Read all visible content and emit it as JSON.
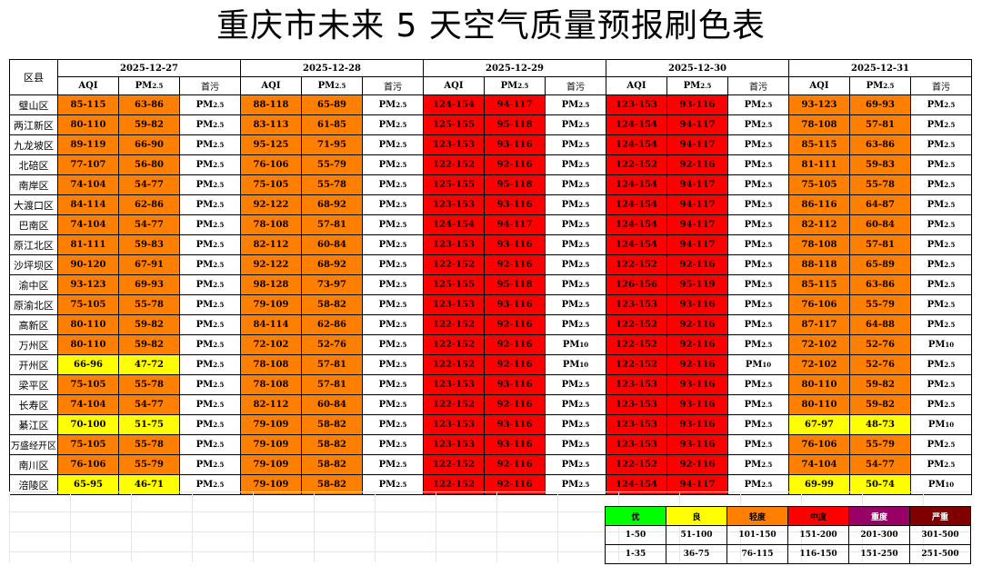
{
  "title": "重庆市未来 5 天空气质量预报刷色表",
  "header": {
    "district_label": "区县",
    "dates": [
      "2025-12-27",
      "2025-12-28",
      "2025-12-29",
      "2025-12-30",
      "2025-12-31"
    ],
    "sub_labels": [
      "AQI",
      "PM2.5",
      "首污"
    ]
  },
  "colors": {
    "good": "#ffff00",
    "light": "#ff7f00",
    "moderate": "#ff0000",
    "excellent": "#00ff00",
    "heavy": "#990066",
    "severe": "#800000"
  },
  "rows": [
    {
      "district": "璧山区",
      "days": [
        [
          "85-115",
          "63-86",
          "PM2.5",
          "light"
        ],
        [
          "88-118",
          "65-89",
          "PM2.5",
          "light"
        ],
        [
          "124-154",
          "94-117",
          "PM2.5",
          "mid"
        ],
        [
          "123-153",
          "93-116",
          "PM2.5",
          "mid"
        ],
        [
          "93-123",
          "69-93",
          "PM2.5",
          "light"
        ]
      ]
    },
    {
      "district": "两江新区",
      "days": [
        [
          "80-110",
          "59-82",
          "PM2.5",
          "light"
        ],
        [
          "83-113",
          "61-85",
          "PM2.5",
          "light"
        ],
        [
          "125-155",
          "95-118",
          "PM2.5",
          "mid"
        ],
        [
          "124-154",
          "94-117",
          "PM2.5",
          "mid"
        ],
        [
          "78-108",
          "57-81",
          "PM2.5",
          "light"
        ]
      ]
    },
    {
      "district": "九龙坡区",
      "days": [
        [
          "89-119",
          "66-90",
          "PM2.5",
          "light"
        ],
        [
          "95-125",
          "71-95",
          "PM2.5",
          "light"
        ],
        [
          "123-153",
          "93-116",
          "PM2.5",
          "mid"
        ],
        [
          "124-154",
          "94-117",
          "PM2.5",
          "mid"
        ],
        [
          "85-115",
          "63-86",
          "PM2.5",
          "light"
        ]
      ]
    },
    {
      "district": "北碚区",
      "days": [
        [
          "77-107",
          "56-80",
          "PM2.5",
          "light"
        ],
        [
          "76-106",
          "55-79",
          "PM2.5",
          "light"
        ],
        [
          "122-152",
          "92-116",
          "PM2.5",
          "mid"
        ],
        [
          "122-152",
          "92-116",
          "PM2.5",
          "mid"
        ],
        [
          "81-111",
          "59-83",
          "PM2.5",
          "light"
        ]
      ]
    },
    {
      "district": "南岸区",
      "days": [
        [
          "74-104",
          "54-77",
          "PM2.5",
          "light"
        ],
        [
          "75-105",
          "55-78",
          "PM2.5",
          "light"
        ],
        [
          "125-155",
          "95-118",
          "PM2.5",
          "mid"
        ],
        [
          "124-154",
          "94-117",
          "PM2.5",
          "mid"
        ],
        [
          "75-105",
          "55-78",
          "PM2.5",
          "light"
        ]
      ]
    },
    {
      "district": "大渡口区",
      "days": [
        [
          "84-114",
          "62-86",
          "PM2.5",
          "light"
        ],
        [
          "92-122",
          "68-92",
          "PM2.5",
          "light"
        ],
        [
          "123-153",
          "93-116",
          "PM2.5",
          "mid"
        ],
        [
          "124-154",
          "94-117",
          "PM2.5",
          "mid"
        ],
        [
          "86-116",
          "64-87",
          "PM2.5",
          "light"
        ]
      ]
    },
    {
      "district": "巴南区",
      "days": [
        [
          "74-104",
          "54-77",
          "PM2.5",
          "light"
        ],
        [
          "78-108",
          "57-81",
          "PM2.5",
          "light"
        ],
        [
          "124-154",
          "94-117",
          "PM2.5",
          "mid"
        ],
        [
          "124-154",
          "94-117",
          "PM2.5",
          "mid"
        ],
        [
          "82-112",
          "60-84",
          "PM2.5",
          "light"
        ]
      ]
    },
    {
      "district": "原江北区",
      "days": [
        [
          "81-111",
          "59-83",
          "PM2.5",
          "light"
        ],
        [
          "82-112",
          "60-84",
          "PM2.5",
          "light"
        ],
        [
          "123-153",
          "93-116",
          "PM2.5",
          "mid"
        ],
        [
          "124-154",
          "94-117",
          "PM2.5",
          "mid"
        ],
        [
          "78-108",
          "57-81",
          "PM2.5",
          "light"
        ]
      ]
    },
    {
      "district": "沙坪坝区",
      "days": [
        [
          "90-120",
          "67-91",
          "PM2.5",
          "light"
        ],
        [
          "92-122",
          "68-92",
          "PM2.5",
          "light"
        ],
        [
          "122-152",
          "92-116",
          "PM2.5",
          "mid"
        ],
        [
          "122-152",
          "92-116",
          "PM2.5",
          "mid"
        ],
        [
          "88-118",
          "65-89",
          "PM2.5",
          "light"
        ]
      ]
    },
    {
      "district": "渝中区",
      "days": [
        [
          "93-123",
          "69-93",
          "PM2.5",
          "light"
        ],
        [
          "98-128",
          "73-97",
          "PM2.5",
          "light"
        ],
        [
          "125-155",
          "95-118",
          "PM2.5",
          "mid"
        ],
        [
          "126-156",
          "95-119",
          "PM2.5",
          "mid"
        ],
        [
          "85-115",
          "63-86",
          "PM2.5",
          "light"
        ]
      ]
    },
    {
      "district": "原渝北区",
      "days": [
        [
          "75-105",
          "55-78",
          "PM2.5",
          "light"
        ],
        [
          "79-109",
          "58-82",
          "PM2.5",
          "light"
        ],
        [
          "123-153",
          "93-116",
          "PM2.5",
          "mid"
        ],
        [
          "123-153",
          "93-116",
          "PM2.5",
          "mid"
        ],
        [
          "76-106",
          "55-79",
          "PM2.5",
          "light"
        ]
      ]
    },
    {
      "district": "高新区",
      "days": [
        [
          "80-110",
          "59-82",
          "PM2.5",
          "light"
        ],
        [
          "84-114",
          "62-86",
          "PM2.5",
          "light"
        ],
        [
          "122-152",
          "92-116",
          "PM2.5",
          "mid"
        ],
        [
          "122-152",
          "92-116",
          "PM2.5",
          "mid"
        ],
        [
          "87-117",
          "64-88",
          "PM2.5",
          "light"
        ]
      ]
    },
    {
      "district": "万州区",
      "days": [
        [
          "80-110",
          "59-82",
          "PM2.5",
          "light"
        ],
        [
          "72-102",
          "52-76",
          "PM2.5",
          "light"
        ],
        [
          "122-152",
          "92-116",
          "PM10",
          "mid"
        ],
        [
          "122-152",
          "92-116",
          "PM2.5",
          "mid"
        ],
        [
          "72-102",
          "52-76",
          "PM10",
          "light"
        ]
      ]
    },
    {
      "district": "开州区",
      "days": [
        [
          "66-96",
          "47-72",
          "PM2.5",
          "good"
        ],
        [
          "78-108",
          "57-81",
          "PM2.5",
          "light"
        ],
        [
          "122-152",
          "92-116",
          "PM10",
          "mid"
        ],
        [
          "122-152",
          "92-116",
          "PM10",
          "mid"
        ],
        [
          "72-102",
          "52-76",
          "PM2.5",
          "light"
        ]
      ]
    },
    {
      "district": "梁平区",
      "days": [
        [
          "75-105",
          "55-78",
          "PM2.5",
          "light"
        ],
        [
          "78-108",
          "57-81",
          "PM2.5",
          "light"
        ],
        [
          "123-153",
          "93-116",
          "PM2.5",
          "mid"
        ],
        [
          "123-153",
          "93-116",
          "PM2.5",
          "mid"
        ],
        [
          "80-110",
          "59-82",
          "PM2.5",
          "light"
        ]
      ]
    },
    {
      "district": "长寿区",
      "days": [
        [
          "74-104",
          "54-77",
          "PM2.5",
          "light"
        ],
        [
          "82-112",
          "60-84",
          "PM2.5",
          "light"
        ],
        [
          "122-152",
          "92-116",
          "PM2.5",
          "mid"
        ],
        [
          "123-153",
          "93-116",
          "PM2.5",
          "mid"
        ],
        [
          "80-110",
          "59-82",
          "PM2.5",
          "light"
        ]
      ]
    },
    {
      "district": "綦江区",
      "days": [
        [
          "70-100",
          "51-75",
          "PM2.5",
          "good"
        ],
        [
          "79-109",
          "58-82",
          "PM2.5",
          "light"
        ],
        [
          "123-153",
          "93-116",
          "PM2.5",
          "mid"
        ],
        [
          "123-153",
          "93-116",
          "PM2.5",
          "mid"
        ],
        [
          "67-97",
          "48-73",
          "PM10",
          "good"
        ]
      ]
    },
    {
      "district": "万盛经开区",
      "days": [
        [
          "75-105",
          "55-78",
          "PM2.5",
          "light"
        ],
        [
          "79-109",
          "58-82",
          "PM2.5",
          "light"
        ],
        [
          "123-153",
          "93-116",
          "PM2.5",
          "mid"
        ],
        [
          "123-153",
          "93-116",
          "PM2.5",
          "mid"
        ],
        [
          "76-106",
          "55-79",
          "PM2.5",
          "light"
        ]
      ]
    },
    {
      "district": "南川区",
      "days": [
        [
          "76-106",
          "55-79",
          "PM2.5",
          "light"
        ],
        [
          "79-109",
          "58-82",
          "PM2.5",
          "light"
        ],
        [
          "122-152",
          "92-116",
          "PM2.5",
          "mid"
        ],
        [
          "122-152",
          "92-116",
          "PM2.5",
          "mid"
        ],
        [
          "74-104",
          "54-77",
          "PM2.5",
          "light"
        ]
      ]
    },
    {
      "district": "涪陵区",
      "days": [
        [
          "65-95",
          "46-71",
          "PM2.5",
          "good"
        ],
        [
          "79-109",
          "58-82",
          "PM2.5",
          "light"
        ],
        [
          "122-152",
          "92-116",
          "PM2.5",
          "mid"
        ],
        [
          "124-154",
          "94-117",
          "PM2.5",
          "mid"
        ],
        [
          "69-99",
          "50-74",
          "PM10",
          "good"
        ]
      ]
    }
  ],
  "legend": {
    "levels": [
      {
        "label": "优",
        "color": "#00ff00",
        "aqi": "1-50",
        "pm25": "1-35"
      },
      {
        "label": "良",
        "color": "#ffff00",
        "aqi": "51-100",
        "pm25": "36-75"
      },
      {
        "label": "轻度",
        "color": "#ff7f00",
        "aqi": "101-150",
        "pm25": "76-115"
      },
      {
        "label": "中度",
        "color": "#ff0000",
        "aqi": "151-200",
        "pm25": "116-150"
      },
      {
        "label": "重度",
        "color": "#990066",
        "aqi": "201-300",
        "pm25": "151-250"
      },
      {
        "label": "严重",
        "color": "#800000",
        "aqi": "301-500",
        "pm25": "251-500"
      }
    ]
  }
}
